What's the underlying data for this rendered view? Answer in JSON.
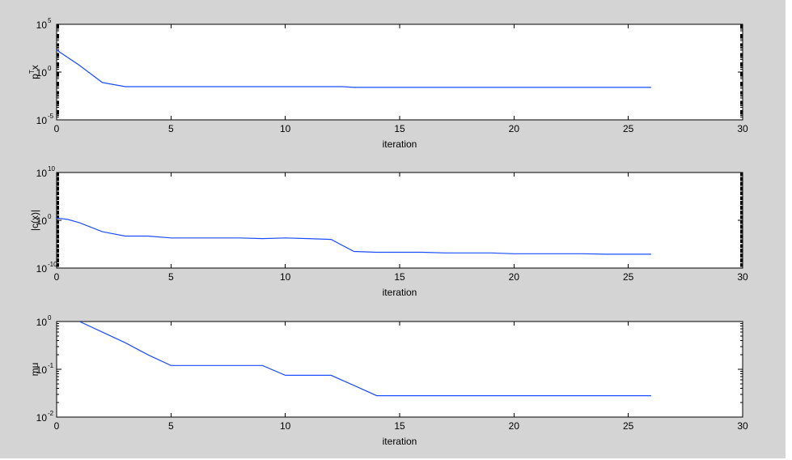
{
  "figure_background": "#d4d4d4",
  "line_color": "#1a4cff",
  "chart_data": [
    {
      "type": "line",
      "title": "",
      "xlabel": "iteration",
      "ylabel": "p^Tx",
      "ylabel_base": "p",
      "ylabel_sup": "T",
      "ylabel_tail": "x",
      "xlim": [
        0,
        30
      ],
      "ylim": [
        1e-05,
        100000
      ],
      "yscale": "log",
      "xticks": [
        0,
        5,
        10,
        15,
        20,
        25,
        30
      ],
      "yticks": [
        {
          "value": 1e-05,
          "base": "10",
          "exp": "-5"
        },
        {
          "value": 1,
          "base": "10",
          "exp": "0"
        },
        {
          "value": 100000,
          "base": "10",
          "exp": "5"
        }
      ],
      "grid": false,
      "series": [
        {
          "x": [
            0,
            1,
            2,
            3,
            4,
            5,
            6,
            7,
            8,
            9,
            10,
            11,
            12,
            12.5,
            13,
            14,
            15,
            16,
            17,
            18,
            19,
            20,
            21,
            22,
            23,
            24,
            25,
            26
          ],
          "y": [
            200,
            5,
            0.08,
            0.03,
            0.03,
            0.03,
            0.03,
            0.03,
            0.03,
            0.03,
            0.03,
            0.03,
            0.03,
            0.03,
            0.025,
            0.025,
            0.025,
            0.025,
            0.025,
            0.025,
            0.025,
            0.025,
            0.025,
            0.025,
            0.025,
            0.025,
            0.025,
            0.025
          ]
        }
      ]
    },
    {
      "type": "line",
      "title": "",
      "xlabel": "iteration",
      "ylabel": "|c(x)|",
      "xlim": [
        0,
        30
      ],
      "ylim": [
        1e-10,
        10000000000
      ],
      "yscale": "log",
      "xticks": [
        0,
        5,
        10,
        15,
        20,
        25,
        30
      ],
      "yticks": [
        {
          "value": 1e-10,
          "base": "10",
          "exp": "-10"
        },
        {
          "value": 1,
          "base": "10",
          "exp": "0"
        },
        {
          "value": 10000000000,
          "base": "10",
          "exp": "10"
        }
      ],
      "grid": false,
      "series": [
        {
          "x": [
            0,
            0.5,
            1,
            2,
            3,
            4,
            5,
            6,
            7,
            8,
            9,
            10,
            11,
            12,
            13,
            14,
            15,
            16,
            17,
            18,
            19,
            20,
            21,
            22,
            23,
            24,
            25,
            26
          ],
          "y": [
            3,
            1.5,
            0.3,
            0.004,
            0.0005,
            0.0005,
            0.0002,
            0.0002,
            0.0002,
            0.0002,
            0.00015,
            0.0002,
            0.00015,
            0.0001,
            3e-07,
            2e-07,
            2e-07,
            2e-07,
            1.5e-07,
            1.5e-07,
            1.5e-07,
            1e-07,
            1e-07,
            1e-07,
            1e-07,
            8e-08,
            8e-08,
            8e-08
          ]
        }
      ]
    },
    {
      "type": "line",
      "title": "",
      "xlabel": "iteration",
      "ylabel": "mu",
      "xlim": [
        0,
        30
      ],
      "ylim": [
        0.01,
        1
      ],
      "yscale": "log",
      "xticks": [
        0,
        5,
        10,
        15,
        20,
        25,
        30
      ],
      "yticks": [
        {
          "value": 0.01,
          "base": "10",
          "exp": "-2"
        },
        {
          "value": 0.1,
          "base": "10",
          "exp": "-1"
        },
        {
          "value": 1,
          "base": "10",
          "exp": "0"
        }
      ],
      "grid": false,
      "series": [
        {
          "x": [
            1,
            2,
            3,
            4,
            5,
            6,
            7,
            8,
            9,
            10,
            11,
            12,
            13,
            14,
            15,
            16,
            17,
            18,
            19,
            20,
            21,
            22,
            23,
            24,
            25,
            26
          ],
          "y": [
            1,
            0.6,
            0.36,
            0.2,
            0.12,
            0.12,
            0.12,
            0.12,
            0.12,
            0.075,
            0.075,
            0.075,
            0.046,
            0.028,
            0.028,
            0.028,
            0.028,
            0.028,
            0.028,
            0.028,
            0.028,
            0.028,
            0.028,
            0.028,
            0.028,
            0.028
          ]
        }
      ]
    }
  ]
}
